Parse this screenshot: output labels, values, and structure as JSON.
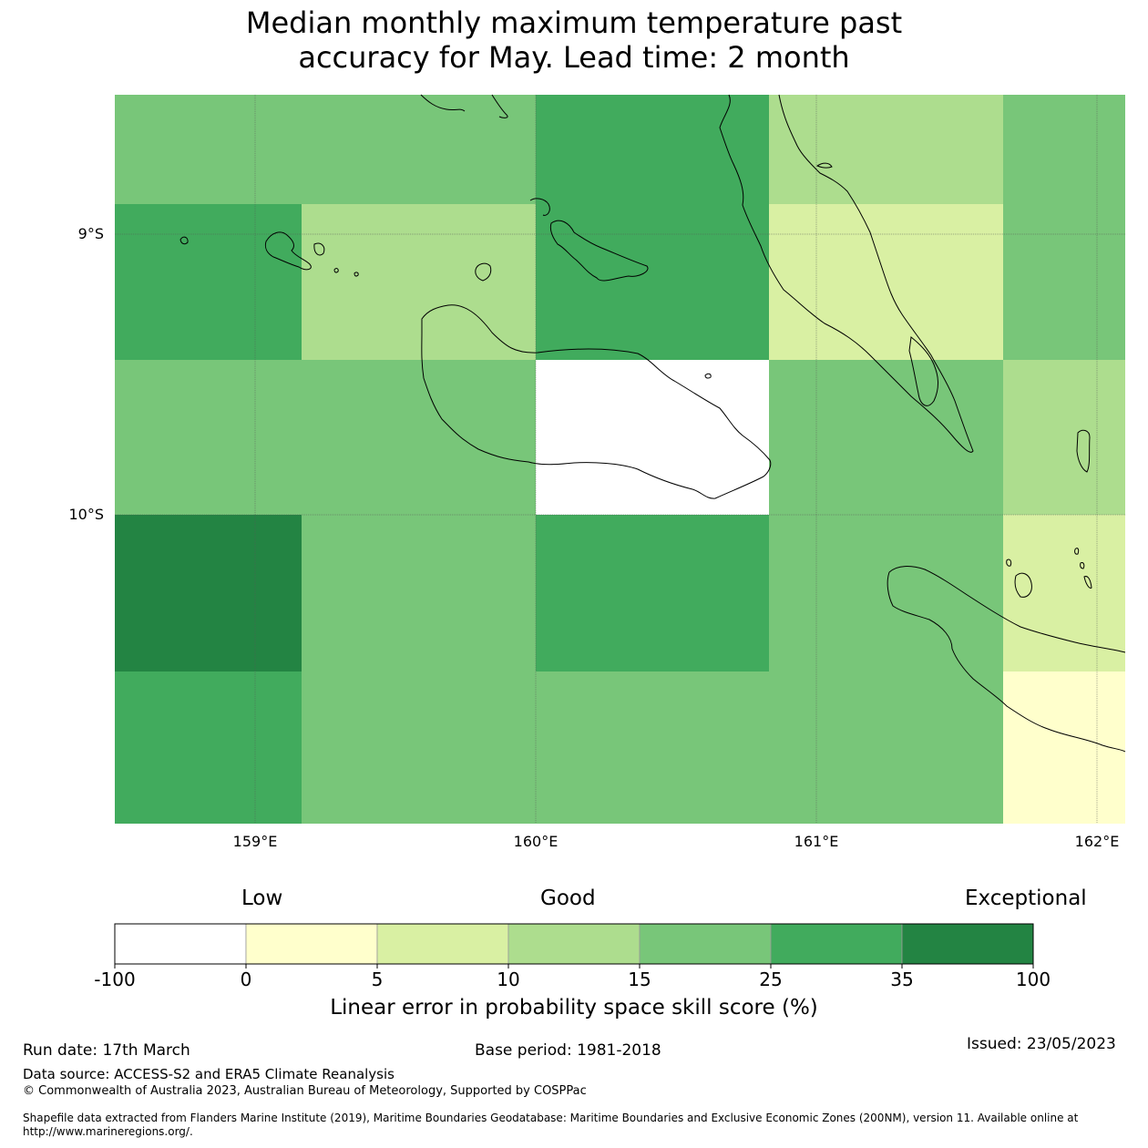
{
  "title": {
    "line1": "Median monthly maximum temperature past",
    "line2": "accuracy for May. Lead time: 2 month"
  },
  "map": {
    "lon_labels": [
      "159°E",
      "160°E",
      "161°E",
      "162°E"
    ],
    "lat_labels": [
      "9°S",
      "10°S"
    ],
    "colors": {
      "white": "#ffffff",
      "c0": "#ffffcc",
      "c5": "#d9f0a3",
      "c10": "#addd8e",
      "c15": "#78c679",
      "c25": "#41ab5d",
      "c35": "#238443"
    },
    "grid": {
      "description_rows": "rows north to south, columns west to east",
      "rows": [
        [
          "c15",
          "c15",
          "c25",
          "c10",
          "c15"
        ],
        [
          "c25",
          "c10",
          "c25",
          "c5",
          "c15"
        ],
        [
          "c15",
          "c15",
          "white",
          "c15",
          "c10"
        ],
        [
          "c35",
          "c15",
          "c25",
          "c15",
          "c5"
        ],
        [
          "c25",
          "c15",
          "c15",
          "c15",
          "c0"
        ]
      ]
    }
  },
  "colorbar": {
    "labels": {
      "low": "Low",
      "good": "Good",
      "exceptional": "Exceptional"
    },
    "ticks": [
      "-100",
      "0",
      "5",
      "10",
      "15",
      "25",
      "35",
      "100"
    ],
    "colors": [
      "#ffffff",
      "#ffffcc",
      "#d9f0a3",
      "#addd8e",
      "#78c679",
      "#41ab5d",
      "#238443"
    ],
    "title": "Linear error in probability space skill score (%)"
  },
  "footer": {
    "run_date": "Run date: 17th March",
    "base_period": "Base period: 1981-2018",
    "issued": "Issued: 23/05/2023",
    "data_source": "Data source: ACCESS-S2 and ERA5 Climate Reanalysis",
    "copyright": "© Commonwealth of Australia 2023, Australian Bureau of Meteorology, Supported by COSPPac",
    "shapefile": "Shapefile data extracted from Flanders Marine Institute (2019), Maritime Boundaries Geodatabase: Maritime Boundaries and Exclusive Economic Zones (200NM), version 11. Available online at http://www.marineregions.org/."
  }
}
